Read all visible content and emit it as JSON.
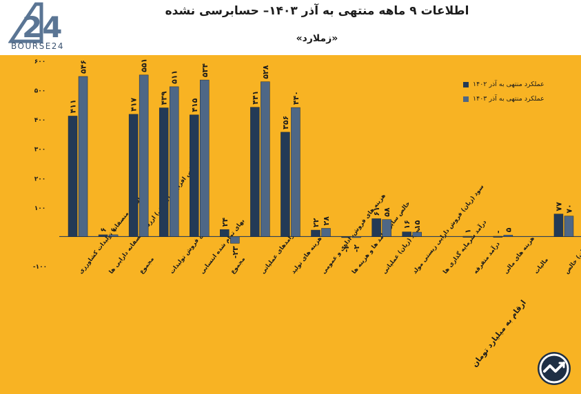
{
  "header": {
    "title": "اطلاعات ۹ ماهه منتهی به آذر ۱۴۰۳– حسابرسی نشده",
    "subtitle": "«زملارد»",
    "logo_text": "BOURSE24"
  },
  "footer": {
    "unit_note": "ارقام به میلیارد تومان"
  },
  "colors": {
    "background": "#f8b323",
    "series_1403_1402": "#233a56",
    "series_1403": "#4e6786"
  },
  "chart_data": {
    "type": "bar",
    "title": "اطلاعات ۹ ماهه منتهی به آذر ۱۴۰۳– حسابرسی نشده",
    "ylim": [
      -100,
      600
    ],
    "yticks": [
      600,
      500,
      400,
      300,
      200,
      100,
      -100
    ],
    "ytick_labels": [
      "۶۰۰",
      "۵۰۰",
      "۴۰۰",
      "۳۰۰",
      "۲۰۰",
      "۱۰۰",
      "-۱۰۰"
    ],
    "categories": [
      "ارزش منصفانه تولیدات کشاورزی",
      "خالص افزایش (کاهش) ارزش منصفانه دارایی ها",
      "مجموع",
      "خالص فروش تولیدات",
      "بهای تمام شده انتسابی",
      "مجموع",
      "درآمدهای عملیاتی",
      "هزینه های تولید",
      "هزینه های فروش، اداری و عمومی",
      "خالص سایر درآمد ها و هزینه ها",
      "سود (زیان) عملیاتی",
      "سود (زیان) فروش دارایی زیستی مولد",
      "درآمد سرمایه گذاری ها",
      "درآمد متفرقه",
      "هزینه های مالی",
      "مالیات",
      "سود (زیان) خالص"
    ],
    "series": [
      {
        "name": "عملکرد منتهی به آذر ۱۴۰۲",
        "values": [
          411,
          6,
          417,
          439,
          415,
          24,
          441,
          356,
          22,
          -2,
          61,
          16,
          null,
          1,
          1,
          null,
          77
        ],
        "labels": [
          "۴۱۱",
          "۶",
          "۴۱۷",
          "۴۳۹",
          "۴۱۵",
          "۲۴",
          "۴۴۱",
          "۳۵۶",
          "۲۲",
          "-۲",
          "۶۱",
          "۱۶",
          "",
          "۱",
          "-",
          "",
          "۷۷"
        ]
      },
      {
        "name": "عملکرد منتهی به آذر ۱۴۰۳",
        "values": [
          546,
          6,
          551,
          511,
          534,
          -23,
          528,
          440,
          28,
          -2,
          58,
          15,
          null,
          null,
          5,
          null,
          70
        ],
        "labels": [
          "۵۴۶",
          "۶",
          "۵۵۱",
          "۵۱۱",
          "۵۳۴",
          "-۲۳",
          "۵۲۸",
          "۴۴۰",
          "۲۸",
          "-۲",
          "۵۸",
          "۱۵",
          "",
          "",
          "۵",
          "",
          "۷۰"
        ]
      }
    ]
  }
}
